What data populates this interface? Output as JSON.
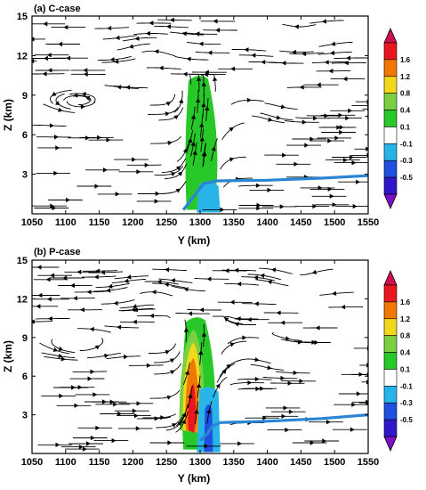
{
  "chart_data": [
    {
      "type": "heatmap",
      "panel_label": "(a) C-case",
      "xlabel": "Y (km)",
      "ylabel": "Z (km)",
      "x_ticks": [
        1050,
        1100,
        1150,
        1200,
        1250,
        1300,
        1350,
        1400,
        1450,
        1500,
        1550
      ],
      "y_ticks": [
        3,
        6,
        9,
        12,
        15
      ],
      "xlim": [
        1050,
        1550
      ],
      "ylim": [
        0,
        15
      ],
      "colorbar": {
        "levels": [
          "1.6",
          "1.2",
          "0.8",
          "0.4",
          "0.1",
          "-0.1",
          "-0.3",
          "-0.5"
        ],
        "colors": [
          "#e8181e",
          "#f07800",
          "#f2d81a",
          "#7ad040",
          "#28c828",
          "#ffffff",
          "#28b4e8",
          "#2050e0",
          "#3018c8"
        ],
        "extend": "both"
      },
      "features": {
        "updraft_region": {
          "y_min_km": 1280,
          "y_max_km": 1325,
          "z_top_km": 10.5,
          "max_level": 0.4
        },
        "downdraft_region": {
          "y_min_km": 1295,
          "y_max_km": 1330,
          "z_top_km": 2.5,
          "min_level": -0.3
        },
        "boundary_line": {
          "color": "#2a86d4",
          "points": [
            [
              1275,
              0.3
            ],
            [
              1292,
              1.4
            ],
            [
              1305,
              2.3
            ],
            [
              1325,
              2.5
            ],
            [
              1400,
              2.55
            ],
            [
              1480,
              2.7
            ],
            [
              1550,
              2.9
            ]
          ]
        }
      }
    },
    {
      "type": "heatmap",
      "panel_label": "(b) P-case",
      "xlabel": "Y (km)",
      "ylabel": "Z (km)",
      "x_ticks": [
        1050,
        1100,
        1150,
        1200,
        1250,
        1300,
        1350,
        1400,
        1450,
        1500,
        1550
      ],
      "y_ticks": [
        3,
        6,
        9,
        12,
        15
      ],
      "xlim": [
        1050,
        1550
      ],
      "ylim": [
        0,
        15
      ],
      "colorbar": {
        "levels": [
          "1.6",
          "1.2",
          "0.8",
          "0.4",
          "0.1",
          "-0.1",
          "-0.3",
          "-0.5"
        ],
        "colors": [
          "#e8181e",
          "#f07800",
          "#f2d81a",
          "#7ad040",
          "#28c828",
          "#ffffff",
          "#28b4e8",
          "#2050e0",
          "#3018c8"
        ],
        "extend": "both"
      },
      "features": {
        "updraft_region": {
          "y_min_km": 1275,
          "y_max_km": 1322,
          "z_top_km": 10.6,
          "max_level": 1.6
        },
        "downdraft_region": {
          "y_min_km": 1295,
          "y_max_km": 1330,
          "z_top_km": 5.2,
          "min_level": -0.5
        },
        "boundary_line": {
          "color": "#2a86d4",
          "points": [
            [
              1300,
              1.0
            ],
            [
              1310,
              1.5
            ],
            [
              1318,
              2.1
            ],
            [
              1330,
              2.4
            ],
            [
              1400,
              2.5
            ],
            [
              1480,
              2.7
            ],
            [
              1550,
              3.0
            ]
          ]
        }
      }
    }
  ]
}
